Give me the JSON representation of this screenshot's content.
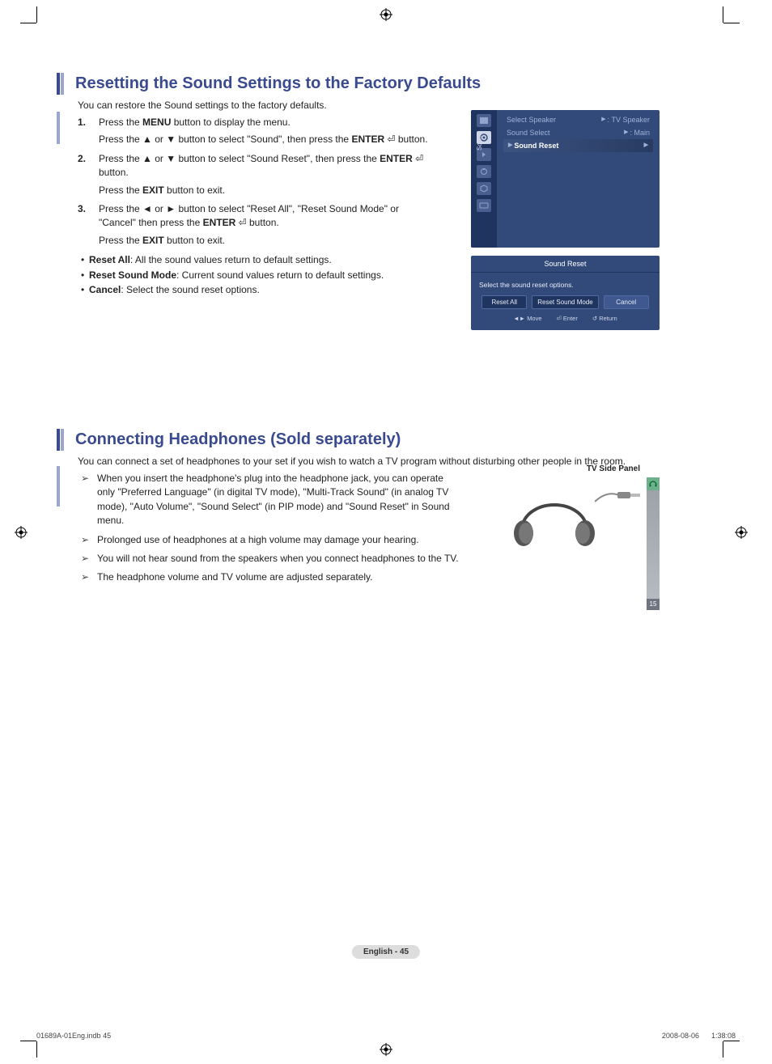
{
  "reg_mark_color": "#000000",
  "section1": {
    "title": "Resetting the Sound Settings to the Factory Defaults",
    "lead": "You can restore the Sound settings to the factory defaults.",
    "steps": [
      {
        "n": "1.",
        "lines": [
          "Press the <b>MENU</b> button to display the menu.",
          "Press the ▲ or ▼ button to select \"Sound\", then press the <b>ENTER</b> <span class='enter-sym'>⏎</span> button."
        ]
      },
      {
        "n": "2.",
        "lines": [
          "Press the ▲ or ▼ button to select \"Sound Reset\", then press the <b>ENTER</b> <span class='enter-sym'>⏎</span> button.",
          "Press the <b>EXIT</b> button to exit."
        ]
      },
      {
        "n": "3.",
        "lines": [
          "Press the ◄ or ► button to select \"Reset All\", \"Reset Sound Mode\" or \"Cancel\" then press the <b>ENTER</b> <span class='enter-sym'>⏎</span> button.",
          "Press the <b>EXIT</b> button to exit."
        ]
      }
    ],
    "bullets": [
      {
        "term": "Reset All",
        "def": ": All the sound values return to default settings."
      },
      {
        "term": "Reset Sound Mode",
        "def": ": Current sound values return to default settings."
      },
      {
        "term": "Cancel",
        "def": ": Select the sound reset options."
      }
    ]
  },
  "osd1": {
    "sidebar_label": "Sound",
    "rows": [
      {
        "label": "Select Speaker",
        "value": ": TV Speaker"
      },
      {
        "label": "Sound Select",
        "value": ": Main"
      },
      {
        "label": "Sound Reset",
        "value": "",
        "highlight": true
      }
    ],
    "bg": "#324a7a",
    "sidebar_bg": "#1f3560"
  },
  "osd2": {
    "title": "Sound Reset",
    "message": "Select the sound reset options.",
    "buttons": [
      "Reset All",
      "Reset Sound Mode",
      "Cancel"
    ],
    "footer": {
      "move": "Move",
      "enter": "Enter",
      "return": "Return"
    }
  },
  "section2": {
    "title": "Connecting Headphones (Sold separately)",
    "lead": "You can connect a set of headphones to your set if you wish to watch a TV program without disturbing other people in the room.",
    "arrows": [
      "When you insert the headphone's plug into the headphone jack, you can operate only \"Preferred Language\" (in digital TV mode), \"Multi-Track Sound\" (in analog TV mode), \"Auto Volume\", \"Sound Select\" (in PIP mode) and \"Sound Reset\" in Sound menu.",
      "Prolonged use of headphones at a high volume may damage your hearing.",
      "You will not hear sound from the speakers when you connect headphones to the TV.",
      "The headphone volume and TV volume are adjusted separately."
    ],
    "figure_title": "TV Side Panel",
    "panel_port_num": "15"
  },
  "pagefoot": "English - 45",
  "docfoot_left": "01689A-01Eng.indb   45",
  "docfoot_right": "2008-08-06      1:38:08"
}
